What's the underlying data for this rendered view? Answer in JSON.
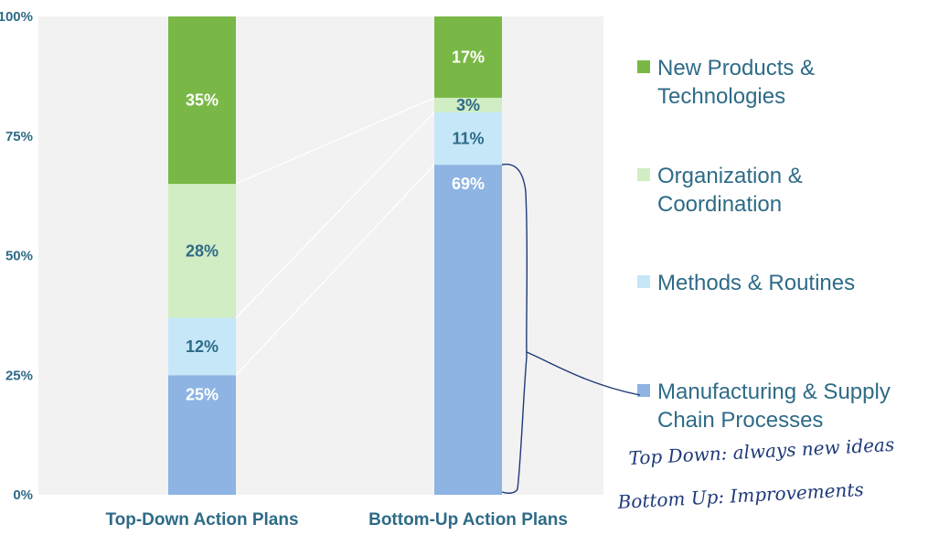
{
  "chart_data": {
    "type": "bar",
    "stacked": true,
    "percent": true,
    "categories": [
      "Top-Down Action Plans",
      "Bottom-Up Action Plans"
    ],
    "series": [
      {
        "name": "Manufacturing & Supply Chain Processes",
        "values": [
          25,
          69
        ],
        "labels": [
          "25%",
          "69%"
        ],
        "color": "#8db4e2",
        "label_color": "#ffffff"
      },
      {
        "name": "Methods & Routines",
        "values": [
          12,
          11
        ],
        "labels": [
          "12%",
          "11%"
        ],
        "color": "#c6e7f8",
        "label_color": "#2e6b87"
      },
      {
        "name": "Organization & Coordination",
        "values": [
          28,
          3
        ],
        "labels": [
          "28%",
          "3%"
        ],
        "color": "#d1edc4",
        "label_color": "#2e6b87"
      },
      {
        "name": "New Products & Technologies",
        "values": [
          35,
          17
        ],
        "labels": [
          "35%",
          "17%"
        ],
        "color": "#79b846",
        "label_color": "#ffffff"
      }
    ],
    "ylim": [
      0,
      100
    ],
    "yticks": [
      "0%",
      "25%",
      "50%",
      "75%",
      "100%"
    ],
    "legend_position": "right",
    "grid": false,
    "plot_background": "#f2f2f2",
    "annotation_lines": [
      "Top Down: always new ideas",
      "Bottom Up: Improvements"
    ]
  }
}
